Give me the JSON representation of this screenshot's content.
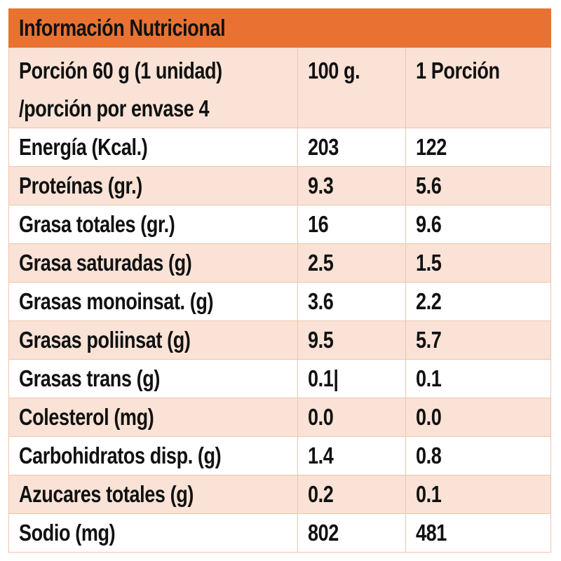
{
  "title": "Información Nutricional",
  "header": {
    "portion_line1": "Porción 60 g (1 unidad)",
    "portion_line2": "/porción por envase 4",
    "col_100g": "100 g.",
    "col_portion": "1 Porción"
  },
  "colors": {
    "title_bg": "#e97232",
    "alt_row_bg": "#fae2d6",
    "border": "#f1c4ad"
  },
  "rows": [
    {
      "label": "Energía (Kcal.)",
      "per100": "203",
      "perPortion": "122"
    },
    {
      "label": "Proteínas (gr.)",
      "per100": "9.3",
      "perPortion": "5.6"
    },
    {
      "label": "Grasa totales (gr.)",
      "per100": "16",
      "perPortion": "9.6"
    },
    {
      "label": "Grasa saturadas (g)",
      "per100": "2.5",
      "perPortion": "1.5"
    },
    {
      "label": "Grasas monoinsat. (g)",
      "per100": "3.6",
      "perPortion": "2.2"
    },
    {
      "label": "Grasas poliinsat (g)",
      "per100": "9.5",
      "perPortion": "5.7"
    },
    {
      "label": "Grasas trans (g)",
      "per100": "0.1|",
      "perPortion": "0.1"
    },
    {
      "label": "Colesterol (mg)",
      "per100": "0.0",
      "perPortion": "0.0"
    },
    {
      "label": "Carbohidratos disp. (g)",
      "per100": "1.4",
      "perPortion": "0.8"
    },
    {
      "label": "Azucares totales (g)",
      "per100": "0.2",
      "perPortion": "0.1"
    },
    {
      "label": "Sodio (mg)",
      "per100": "802",
      "perPortion": "481"
    }
  ]
}
